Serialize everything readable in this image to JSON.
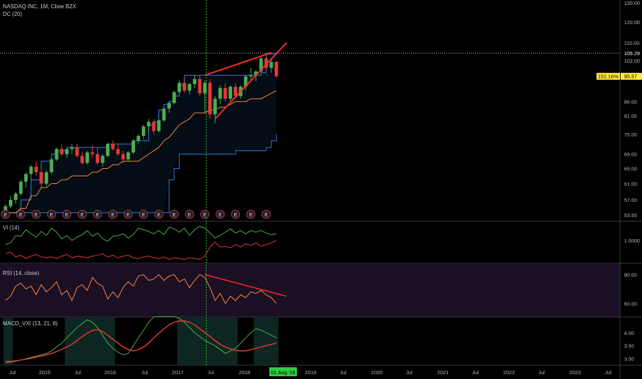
{
  "header": {
    "symbol_line": "NASDAQ INC, 1M, Cboe BZX",
    "indicator": "DC (20)"
  },
  "panes": {
    "vi": "VI (14)",
    "rsi": "RSI (14, close)",
    "macd": "MACD_VXI (13, 21, 8)"
  },
  "colors": {
    "background": "#000000",
    "up": "#4caf50",
    "down": "#e53935",
    "trendline": "#ff2a2a",
    "donchian_band": "#2f80ed",
    "donchian_basis": "#ff8a3d",
    "rsi_bg": "#1b0f24",
    "macd_bg": "#0d2622",
    "highlight_tag": "#ffeb3b",
    "crosshair": "#2ecc40"
  },
  "icons": {
    "earnings": "earnings-e-icon"
  },
  "chart_data": {
    "type": "candlestick",
    "price_axis": {
      "ticks": [
        "130.00",
        "120.00",
        "110.00",
        "102.00",
        "95.57",
        "86.00",
        "81.00",
        "75.00",
        "69.00",
        "65.00",
        "61.00",
        "57.00",
        "53.50"
      ],
      "current_value": "105.29",
      "last_price": "95.57",
      "percent_label": "152.16%",
      "scale": "log",
      "range": [
        53.5,
        130
      ]
    },
    "time_axis": {
      "labels": [
        "Jul",
        "2015",
        "Jul",
        "2016",
        "Jul",
        "2017",
        "Jul",
        "2018",
        "Jul",
        "2019",
        "Jul",
        "2020",
        "Jul",
        "2021",
        "Jul",
        "2022",
        "Jul",
        "2023",
        "Jul"
      ],
      "crosshair_label": "01 Aug '18"
    },
    "vi_axis": {
      "ticks": [
        "1.0000"
      ]
    },
    "rsi_axis": {
      "ticks": [
        "80.00",
        "60.00"
      ]
    },
    "macd_axis": {
      "ticks": [
        "4.00",
        "3.50",
        "3.00"
      ]
    },
    "donchian": {
      "upper": [
        54,
        54,
        54,
        57,
        57,
        62,
        62,
        67,
        67,
        69,
        70,
        70,
        71,
        71,
        71,
        71,
        71,
        71,
        71,
        71,
        72,
        72,
        72,
        72,
        72,
        73,
        73,
        73,
        78,
        79,
        83,
        85,
        86,
        88,
        92,
        96,
        96,
        96,
        96,
        96,
        96,
        96,
        96,
        96,
        96,
        96,
        96,
        96,
        96,
        96,
        97,
        105,
        105,
        105
      ],
      "lower": [
        54,
        54,
        54,
        54,
        54,
        54,
        54,
        54,
        54,
        54,
        54,
        54,
        54,
        54,
        54,
        54,
        54,
        54,
        54,
        54,
        54,
        54,
        54,
        54,
        54,
        54,
        54,
        54,
        54,
        54,
        54,
        54,
        62,
        65,
        69,
        69,
        69,
        69,
        69,
        69,
        69,
        69,
        69,
        69,
        69,
        70,
        70,
        70,
        70,
        70,
        70,
        71,
        73,
        75
      ],
      "basis": [
        54,
        54,
        54,
        55,
        55,
        58,
        58,
        60,
        60,
        61,
        61,
        62,
        62,
        63,
        63,
        63,
        63,
        64,
        64,
        65,
        65,
        66,
        66,
        67,
        67,
        67,
        67,
        68,
        69,
        70,
        71,
        73,
        74,
        76,
        78,
        79,
        80,
        82,
        82,
        82,
        83,
        83,
        84,
        84,
        85,
        86,
        86,
        86,
        87,
        87,
        87,
        88,
        89,
        90
      ]
    },
    "candles": [
      {
        "o": 54,
        "h": 56,
        "l": 53.8,
        "c": 55.5
      },
      {
        "o": 55.5,
        "h": 58,
        "l": 55,
        "c": 57
      },
      {
        "o": 57,
        "h": 59,
        "l": 56,
        "c": 58.5
      },
      {
        "o": 58.5,
        "h": 62,
        "l": 58,
        "c": 61.5
      },
      {
        "o": 61.5,
        "h": 64,
        "l": 60,
        "c": 63.5
      },
      {
        "o": 63.5,
        "h": 66,
        "l": 62,
        "c": 65.5
      },
      {
        "o": 65.5,
        "h": 67,
        "l": 63,
        "c": 64
      },
      {
        "o": 64,
        "h": 65.5,
        "l": 60,
        "c": 61
      },
      {
        "o": 61,
        "h": 64.5,
        "l": 60.5,
        "c": 64
      },
      {
        "o": 64,
        "h": 68,
        "l": 63.5,
        "c": 67.5
      },
      {
        "o": 67.5,
        "h": 71,
        "l": 67,
        "c": 70.5
      },
      {
        "o": 70.5,
        "h": 72,
        "l": 68.5,
        "c": 69
      },
      {
        "o": 69,
        "h": 71,
        "l": 68,
        "c": 70.5
      },
      {
        "o": 70.5,
        "h": 72,
        "l": 69,
        "c": 71
      },
      {
        "o": 71,
        "h": 72,
        "l": 68,
        "c": 68.5
      },
      {
        "o": 68.5,
        "h": 69.5,
        "l": 66,
        "c": 66.5
      },
      {
        "o": 66.5,
        "h": 70,
        "l": 66,
        "c": 69.5
      },
      {
        "o": 69.5,
        "h": 71.5,
        "l": 68,
        "c": 69
      },
      {
        "o": 69,
        "h": 71,
        "l": 66,
        "c": 66.5
      },
      {
        "o": 66.5,
        "h": 69,
        "l": 65.5,
        "c": 68.5
      },
      {
        "o": 68.5,
        "h": 72.5,
        "l": 68,
        "c": 72
      },
      {
        "o": 72,
        "h": 73,
        "l": 70,
        "c": 70.5
      },
      {
        "o": 70.5,
        "h": 72,
        "l": 68.5,
        "c": 69
      },
      {
        "o": 69,
        "h": 70,
        "l": 66.5,
        "c": 67.5
      },
      {
        "o": 67.5,
        "h": 70,
        "l": 67,
        "c": 69.5
      },
      {
        "o": 69.5,
        "h": 73.5,
        "l": 69,
        "c": 73
      },
      {
        "o": 73,
        "h": 75,
        "l": 72,
        "c": 74.5
      },
      {
        "o": 74.5,
        "h": 78,
        "l": 73.5,
        "c": 77.5
      },
      {
        "o": 77.5,
        "h": 80,
        "l": 76,
        "c": 79
      },
      {
        "o": 79,
        "h": 80,
        "l": 75,
        "c": 76
      },
      {
        "o": 76,
        "h": 80,
        "l": 75.5,
        "c": 79.5
      },
      {
        "o": 79.5,
        "h": 84,
        "l": 79,
        "c": 83.5
      },
      {
        "o": 83.5,
        "h": 86,
        "l": 82,
        "c": 85.5
      },
      {
        "o": 85.5,
        "h": 90,
        "l": 85,
        "c": 89.5
      },
      {
        "o": 89.5,
        "h": 94,
        "l": 89,
        "c": 93
      },
      {
        "o": 93,
        "h": 95,
        "l": 89,
        "c": 90
      },
      {
        "o": 90,
        "h": 93,
        "l": 88.5,
        "c": 92.5
      },
      {
        "o": 92.5,
        "h": 96,
        "l": 91,
        "c": 94.5
      },
      {
        "o": 94.5,
        "h": 96,
        "l": 88,
        "c": 89
      },
      {
        "o": 89,
        "h": 94,
        "l": 82,
        "c": 93
      },
      {
        "o": 93,
        "h": 94.5,
        "l": 80,
        "c": 81.5
      },
      {
        "o": 81.5,
        "h": 88,
        "l": 78.5,
        "c": 87
      },
      {
        "o": 87,
        "h": 92,
        "l": 85,
        "c": 91
      },
      {
        "o": 91,
        "h": 93,
        "l": 86,
        "c": 87
      },
      {
        "o": 87,
        "h": 92,
        "l": 86,
        "c": 91.5
      },
      {
        "o": 91.5,
        "h": 93,
        "l": 87,
        "c": 88
      },
      {
        "o": 88,
        "h": 92,
        "l": 87,
        "c": 91.5
      },
      {
        "o": 91.5,
        "h": 96,
        "l": 90,
        "c": 95.5
      },
      {
        "o": 95.5,
        "h": 99,
        "l": 94,
        "c": 96
      },
      {
        "o": 96,
        "h": 98,
        "l": 93.5,
        "c": 97.5
      },
      {
        "o": 97.5,
        "h": 104,
        "l": 96,
        "c": 103
      },
      {
        "o": 103,
        "h": 105.3,
        "l": 98,
        "c": 99
      },
      {
        "o": 99,
        "h": 103,
        "l": 97,
        "c": 101.5
      },
      {
        "o": 101.5,
        "h": 102,
        "l": 95,
        "c": 95.6
      }
    ],
    "trendlines": [
      {
        "x1": 39,
        "y1": 96,
        "x2": 52,
        "y2": 105.5
      },
      {
        "x1": 41,
        "y1": 80,
        "x2": 55,
        "y2": 110
      }
    ],
    "vi_plus": [
      0.95,
      0.97,
      1.06,
      1.05,
      1.13,
      1.08,
      1.04,
      1.11,
      1.06,
      1.15,
      1.1,
      1.02,
      1.06,
      1.0,
      1.04,
      1.07,
      1.12,
      1.05,
      1.09,
      1.02,
      0.99,
      1.05,
      1.06,
      1.08,
      1.03,
      1.07,
      1.15,
      1.13,
      1.11,
      1.08,
      1.12,
      1.07,
      1.16,
      1.14,
      1.1,
      1.15,
      1.06,
      1.13,
      1.17,
      1.15,
      1.09,
      1.03,
      1.06,
      1.1,
      1.14,
      1.09,
      1.12,
      1.08,
      1.12,
      1.1,
      1.12,
      1.09,
      1.07,
      1.08
    ],
    "vi_minus": [
      0.84,
      0.86,
      0.8,
      0.82,
      0.78,
      0.81,
      0.83,
      0.8,
      0.79,
      0.8,
      0.78,
      0.81,
      0.83,
      0.79,
      0.81,
      0.8,
      0.79,
      0.81,
      0.82,
      0.84,
      0.8,
      0.82,
      0.79,
      0.81,
      0.82,
      0.79,
      0.78,
      0.8,
      0.81,
      0.79,
      0.78,
      0.8,
      0.77,
      0.79,
      0.78,
      0.77,
      0.79,
      0.78,
      0.77,
      0.81,
      0.92,
      0.98,
      0.92,
      0.93,
      0.91,
      0.95,
      0.92,
      0.96,
      0.94,
      0.97,
      0.93,
      0.95,
      0.97,
      1.0
    ],
    "rsi": [
      62,
      65,
      72,
      74,
      70,
      72,
      66,
      73,
      68,
      71,
      75,
      66,
      69,
      62,
      71,
      73,
      69,
      78,
      74,
      72,
      63,
      68,
      64,
      71,
      75,
      72,
      79,
      80,
      76,
      77,
      80,
      76,
      79,
      80,
      75,
      77,
      71,
      76,
      80,
      78,
      71,
      62,
      67,
      60,
      65,
      62,
      66,
      64,
      68,
      67,
      69,
      66,
      64,
      60
    ],
    "rsi_trend": {
      "x1": 39,
      "y1": 80,
      "x2": 55,
      "y2": 65
    },
    "macd_line": [
      2.85,
      2.87,
      2.9,
      2.95,
      3.0,
      3.05,
      3.1,
      3.15,
      3.2,
      3.3,
      3.45,
      3.6,
      3.8,
      4.0,
      4.2,
      4.35,
      4.5,
      4.4,
      4.2,
      3.9,
      3.6,
      3.4,
      3.25,
      3.15,
      3.2,
      3.5,
      3.8,
      4.1,
      4.4,
      4.6,
      4.75,
      4.9,
      4.85,
      4.7,
      4.55,
      4.4,
      4.2,
      4.0,
      3.85,
      3.7,
      3.6,
      3.5,
      3.35,
      3.2,
      3.3,
      3.4,
      3.6,
      3.8,
      4.0,
      4.15,
      4.1,
      4.0,
      3.9,
      3.8
    ],
    "macd_signal": [
      2.9,
      2.9,
      2.92,
      2.95,
      2.98,
      3.02,
      3.06,
      3.1,
      3.15,
      3.2,
      3.28,
      3.36,
      3.45,
      3.55,
      3.7,
      3.85,
      3.98,
      4.08,
      4.12,
      4.05,
      3.9,
      3.75,
      3.6,
      3.45,
      3.35,
      3.3,
      3.35,
      3.45,
      3.6,
      3.8,
      3.98,
      4.15,
      4.3,
      4.4,
      4.45,
      4.45,
      4.4,
      4.3,
      4.15,
      4.0,
      3.85,
      3.7,
      3.55,
      3.45,
      3.38,
      3.32,
      3.3,
      3.3,
      3.35,
      3.4,
      3.45,
      3.5,
      3.55,
      3.6
    ],
    "macd_green_zones": [
      [
        0,
        1
      ],
      [
        12,
        21
      ],
      [
        34,
        45
      ],
      [
        49,
        53
      ]
    ]
  }
}
